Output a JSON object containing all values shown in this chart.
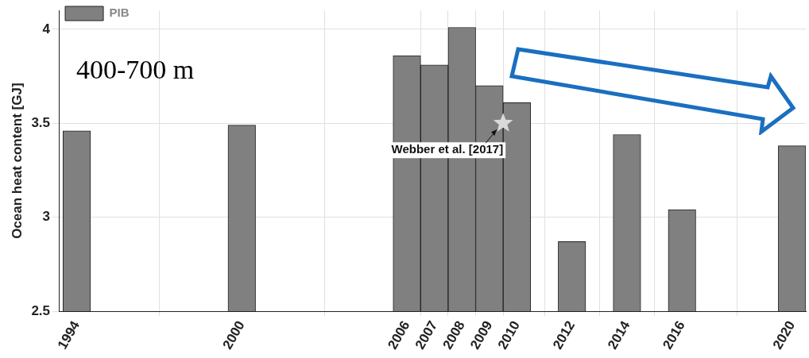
{
  "chart_data": {
    "type": "bar",
    "ylabel": "Ocean heat content [GJ]",
    "x": [
      1994,
      2000,
      2006,
      2007,
      2008,
      2009,
      2010,
      2012,
      2014,
      2016,
      2020
    ],
    "series": [
      {
        "name": "PIB",
        "color": "#808080",
        "values": [
          3.46,
          3.49,
          3.86,
          3.81,
          4.01,
          3.7,
          3.61,
          2.87,
          3.44,
          3.04,
          3.38
        ]
      },
      {
        "type": "scatter",
        "x": [
          2009.5
        ],
        "values": [
          3.5
        ],
        "color": "#d9d9d9",
        "marker": "star"
      }
    ],
    "xlim": [
      1993.35,
      2020.5
    ],
    "xticks": [
      1994,
      2000,
      2006,
      2007,
      2008,
      2009,
      2010,
      2012,
      2014,
      2016,
      2020
    ],
    "ylim": [
      2.5,
      4.1
    ],
    "yticks": [
      2.5,
      3,
      3.5,
      4
    ],
    "grid": true,
    "legend": "top left",
    "annotations": [
      "400-700 m",
      {
        "text": "Webber et al. [2017]",
        "x": 2009.5,
        "y": 3.5
      }
    ]
  }
}
